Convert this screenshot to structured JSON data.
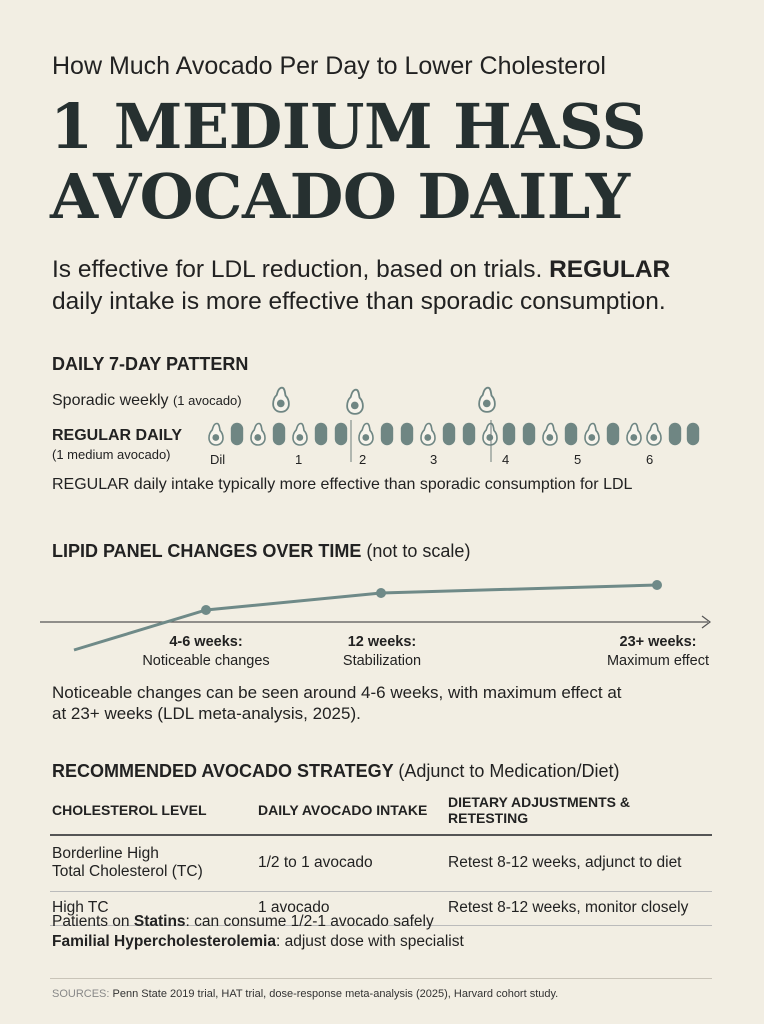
{
  "header": {
    "kicker": "How Much Avocado Per Day to Lower Cholesterol",
    "headline_line1": "1 MEDIUM HASS",
    "headline_line2": "AVOCADO DAILY",
    "lede_line1_pre": "Is effective for LDL reduction, based on trials. ",
    "lede_line1_bold": "REGULAR",
    "lede_line2": "daily intake is more effective than sporadic consumption."
  },
  "pattern": {
    "title": "DAILY 7-DAY PATTERN",
    "sporadic_label": "Sporadic weekly",
    "sporadic_sub": "(1 avocado)",
    "regular_label": "REGULAR DAILY",
    "regular_sub": "(1 medium avocado)",
    "day_labels": [
      "Dil",
      "1",
      "2",
      "3",
      "4",
      "5",
      "6"
    ],
    "note": "REGULAR daily intake typically more effective than sporadic consumption for LDL",
    "avocado_color": "#6f8683"
  },
  "lipid": {
    "title": "LIPID PANEL CHANGES OVER TIME",
    "title_note": "(not to scale)",
    "milestones": [
      {
        "title": "4-6 weeks:",
        "sub": "Noticeable changes"
      },
      {
        "title": "12 weeks:",
        "sub": "Stabilization"
      },
      {
        "title": "23+ weeks:",
        "sub": "Maximum effect"
      }
    ],
    "note_line1": "Noticeable changes can be seen around 4-6 weeks, with maximum effect at",
    "note_line2": "at 23+ weeks (LDL meta-analysis, 2025).",
    "line_color": "#6f8a88"
  },
  "strategy": {
    "title": "RECOMMENDED AVOCADO STRATEGY",
    "title_note": "(Adjunct to Medication/Diet)",
    "columns": [
      "CHOLESTEROL LEVEL",
      "DAILY AVOCADO INTAKE",
      "DIETARY ADJUSTMENTS & RETESTING"
    ],
    "rows": [
      {
        "level_line1": "Borderline High",
        "level_line2": "Total Cholesterol (TC)",
        "intake": "1/2 to 1 avocado",
        "adjust": "Retest 8-12 weeks, adjunct to diet"
      },
      {
        "level_line1": "High TC",
        "level_line2": "",
        "intake": "1 avocado",
        "adjust": "Retest 8-12 weeks, monitor closely"
      }
    ],
    "patients_line1_pre": "Patients on ",
    "patients_line1_bold": "Statins",
    "patients_line1_post": ": can consume 1/2-1 avocado safely",
    "patients_line2_bold": "Familial Hypercholesterolemia",
    "patients_line2_post": ": adjust dose with specialist"
  },
  "sources": {
    "label": "SOURCES:",
    "text": " Penn State 2019 trial, HAT trial, dose-response meta-analysis (2025), Harvard cohort study."
  }
}
